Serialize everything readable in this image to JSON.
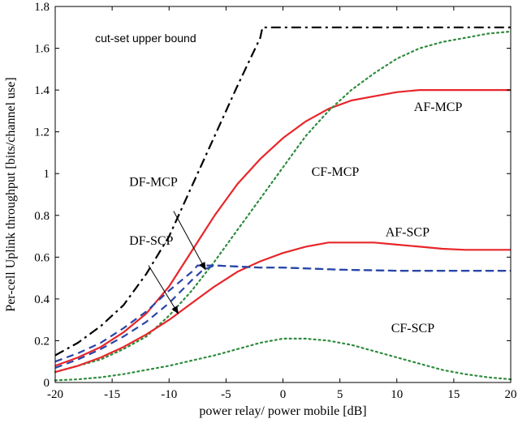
{
  "chart_data": {
    "type": "line",
    "title": "",
    "xlabel": "power relay/ power mobile [dB]",
    "ylabel": "Per-cell Uplink throughput [bits/channel use]",
    "xlim": [
      -20,
      20
    ],
    "ylim": [
      0,
      1.8
    ],
    "xticks": [
      -20,
      -15,
      -10,
      -5,
      0,
      5,
      10,
      15,
      20
    ],
    "yticks": [
      0,
      0.2,
      0.4,
      0.6,
      0.8,
      1,
      1.2,
      1.4,
      1.6,
      1.8
    ],
    "xtick_labels": [
      "-20",
      "-15",
      "-10",
      "-5",
      "0",
      "5",
      "10",
      "15",
      "20"
    ],
    "ytick_labels": [
      "0",
      "0.2",
      "0.4",
      "0.6",
      "0.8",
      "1",
      "1.2",
      "1.4",
      "1.6",
      "1.8"
    ],
    "grid": false,
    "series": [
      {
        "name": "cut-set upper bound",
        "color": "#000000",
        "style": "dashdot",
        "x": [
          -20,
          -18,
          -16,
          -14,
          -12,
          -10,
          -8,
          -6,
          -4,
          -2,
          -1.8,
          0,
          5,
          10,
          15,
          20
        ],
        "y": [
          0.13,
          0.19,
          0.27,
          0.37,
          0.52,
          0.7,
          0.94,
          1.18,
          1.42,
          1.65,
          1.7,
          1.7,
          1.7,
          1.7,
          1.7,
          1.7
        ]
      },
      {
        "name": "AF-MCP",
        "color": "#e8262a",
        "style": "solid",
        "x": [
          -20,
          -18,
          -16,
          -14,
          -12,
          -10,
          -8,
          -6,
          -4,
          -2,
          0,
          2,
          4,
          6,
          8,
          10,
          12,
          14,
          16,
          18,
          20
        ],
        "y": [
          0.08,
          0.12,
          0.17,
          0.24,
          0.33,
          0.46,
          0.63,
          0.8,
          0.95,
          1.07,
          1.17,
          1.25,
          1.31,
          1.35,
          1.37,
          1.39,
          1.4,
          1.4,
          1.4,
          1.4,
          1.4
        ]
      },
      {
        "name": "CF-MCP",
        "color": "#2e8b3d",
        "style": "dotted",
        "x": [
          -20,
          -18,
          -16,
          -14,
          -12,
          -10,
          -8,
          -6,
          -4,
          -2,
          0,
          2,
          4,
          6,
          8,
          10,
          12,
          14,
          16,
          18,
          20
        ],
        "y": [
          0.05,
          0.08,
          0.11,
          0.16,
          0.22,
          0.32,
          0.44,
          0.58,
          0.73,
          0.88,
          1.03,
          1.18,
          1.3,
          1.4,
          1.48,
          1.55,
          1.6,
          1.63,
          1.65,
          1.67,
          1.68
        ]
      },
      {
        "name": "AF-SCP",
        "color": "#e8262a",
        "style": "solid",
        "x": [
          -20,
          -18,
          -16,
          -14,
          -12,
          -10,
          -8,
          -6,
          -4,
          -2,
          0,
          2,
          4,
          6,
          8,
          10,
          12,
          14,
          16,
          18,
          20
        ],
        "y": [
          0.05,
          0.08,
          0.12,
          0.17,
          0.23,
          0.3,
          0.38,
          0.46,
          0.53,
          0.58,
          0.62,
          0.65,
          0.67,
          0.67,
          0.67,
          0.66,
          0.65,
          0.64,
          0.635,
          0.635,
          0.635
        ]
      },
      {
        "name": "DF-MCP",
        "color": "#2946a8",
        "style": "dashed",
        "x": [
          -20,
          -18,
          -16,
          -14,
          -12,
          -10,
          -8,
          -7.5,
          -6,
          -4,
          -2,
          0,
          5,
          10,
          15,
          20
        ],
        "y": [
          0.1,
          0.14,
          0.19,
          0.26,
          0.34,
          0.44,
          0.53,
          0.56,
          0.56,
          0.555,
          0.55,
          0.55,
          0.54,
          0.535,
          0.535,
          0.535
        ]
      },
      {
        "name": "DF-SCP",
        "color": "#2946a8",
        "style": "dashed",
        "x": [
          -20,
          -18,
          -16,
          -14,
          -12,
          -10,
          -8,
          -7,
          -6,
          -4,
          -2,
          0,
          5,
          10,
          15,
          20
        ],
        "y": [
          0.07,
          0.11,
          0.16,
          0.22,
          0.29,
          0.38,
          0.49,
          0.54,
          0.56,
          0.555,
          0.55,
          0.55,
          0.54,
          0.535,
          0.535,
          0.535
        ]
      },
      {
        "name": "CF-SCP",
        "color": "#2e8b3d",
        "style": "dotted",
        "x": [
          -20,
          -18,
          -16,
          -14,
          -12,
          -10,
          -8,
          -6,
          -4,
          -2,
          0,
          2,
          4,
          6,
          8,
          10,
          12,
          14,
          16,
          18,
          20
        ],
        "y": [
          0.01,
          0.015,
          0.025,
          0.04,
          0.06,
          0.08,
          0.105,
          0.13,
          0.16,
          0.19,
          0.21,
          0.21,
          0.2,
          0.18,
          0.15,
          0.12,
          0.09,
          0.06,
          0.04,
          0.025,
          0.015
        ]
      }
    ],
    "annotations": [
      {
        "text": "cut-set upper bound",
        "x": -16.5,
        "y": 1.63
      },
      {
        "text": "AF-MCP",
        "x": 11.5,
        "y": 1.3
      },
      {
        "text": "CF-MCP",
        "x": 2.5,
        "y": 0.99
      },
      {
        "text": "DF-MCP",
        "x": -13.5,
        "y": 0.94
      },
      {
        "text": "DF-SCP",
        "x": -13.5,
        "y": 0.66
      },
      {
        "text": "AF-SCP",
        "x": 9,
        "y": 0.7
      },
      {
        "text": "CF-SCP",
        "x": 9.5,
        "y": 0.24
      }
    ],
    "arrows": [
      {
        "from": [
          -9.6,
          0.82
        ],
        "to": [
          -6.8,
          0.54
        ]
      },
      {
        "from": [
          -11.8,
          0.56
        ],
        "to": [
          -9.2,
          0.33
        ]
      }
    ]
  }
}
